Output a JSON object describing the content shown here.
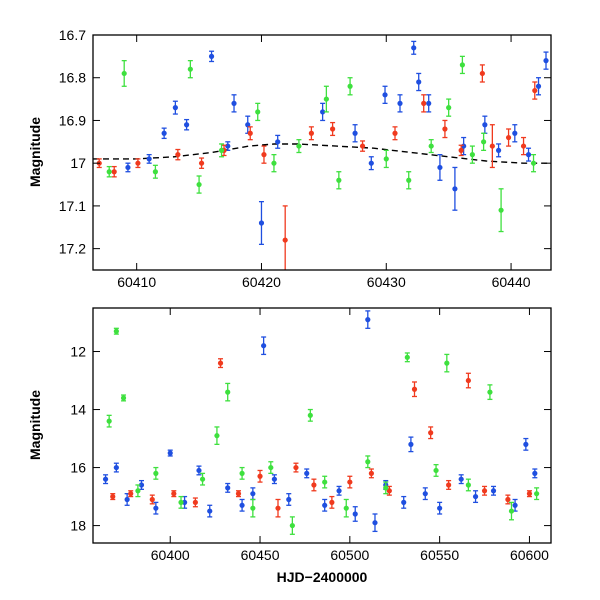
{
  "colors": {
    "blue": "#1f4fe0",
    "red": "#f03a1e",
    "green": "#3ee03e",
    "model": "#000000"
  },
  "chart_data": [
    {
      "type": "scatter",
      "title": "",
      "xlabel": "",
      "ylabel": "Magnitude",
      "xlim": [
        60406.5,
        60443.2
      ],
      "ylim": [
        17.25,
        16.7
      ],
      "y_inverted": true,
      "grid": false,
      "xticks": [
        60410,
        60420,
        60430,
        60440
      ],
      "xtick_labels": [
        "60410",
        "60420",
        "60430",
        "60440"
      ],
      "yticks": [
        16.7,
        16.8,
        16.9,
        17.0,
        17.1,
        17.2
      ],
      "ytick_labels": [
        "16.7",
        "16.8",
        "16.9",
        "17",
        "17.1",
        "17.2"
      ],
      "model_curve": {
        "style": "dashed",
        "color": "#000000",
        "x": [
          60406.5,
          60410,
          60413,
          60416,
          60419,
          60421,
          60423,
          60426,
          60429,
          60432,
          60435,
          60438,
          60441,
          60443.2
        ],
        "y": [
          16.99,
          16.99,
          16.985,
          16.975,
          16.96,
          16.955,
          16.955,
          16.96,
          16.965,
          16.975,
          16.985,
          16.995,
          17.0,
          17.0
        ]
      },
      "series": [
        {
          "color": "blue",
          "x": [
            60409.3,
            60411.0,
            60412.2,
            60413.1,
            60414.0,
            60416.0,
            60417.3,
            60417.8,
            60418.9,
            60420.0,
            60421.3,
            60424.9,
            60427.5,
            60428.8,
            60429.9,
            60431.1,
            60432.2,
            60432.6,
            60433.4,
            60434.3,
            60435.5,
            60436.2,
            60437.9,
            60439.0,
            60440.3,
            60441.4,
            60442.2,
            60442.8
          ],
          "y": [
            17.01,
            16.99,
            16.93,
            16.87,
            16.91,
            16.75,
            16.96,
            16.86,
            16.91,
            17.14,
            16.95,
            16.88,
            16.93,
            17.0,
            16.84,
            16.86,
            16.73,
            16.81,
            16.86,
            17.01,
            17.06,
            16.96,
            16.91,
            16.97,
            16.93,
            16.98,
            16.82,
            16.76
          ],
          "yerr": [
            0.01,
            0.01,
            0.012,
            0.015,
            0.012,
            0.012,
            0.01,
            0.02,
            0.02,
            0.05,
            0.015,
            0.02,
            0.02,
            0.015,
            0.02,
            0.02,
            0.015,
            0.02,
            0.02,
            0.03,
            0.05,
            0.02,
            0.02,
            0.015,
            0.02,
            0.015,
            0.02,
            0.02
          ]
        },
        {
          "color": "red",
          "x": [
            60407.0,
            60408.2,
            60410.1,
            60413.3,
            60415.2,
            60417.0,
            60419.1,
            60420.2,
            60421.9,
            60424.0,
            60425.7,
            60428.1,
            60430.7,
            60433.0,
            60434.7,
            60436.0,
            60437.7,
            60438.5,
            60439.8,
            60441.0,
            60441.9
          ],
          "y": [
            17.0,
            17.02,
            17.0,
            16.98,
            17.0,
            16.97,
            16.93,
            16.98,
            17.18,
            16.93,
            16.92,
            16.96,
            16.93,
            16.86,
            16.92,
            16.97,
            16.79,
            16.96,
            16.94,
            16.96,
            16.83
          ],
          "yerr": [
            0.01,
            0.012,
            0.01,
            0.012,
            0.012,
            0.012,
            0.015,
            0.02,
            0.08,
            0.015,
            0.015,
            0.012,
            0.015,
            0.02,
            0.02,
            0.012,
            0.02,
            0.05,
            0.02,
            0.02,
            0.02
          ]
        },
        {
          "color": "green",
          "x": [
            60407.8,
            60409.0,
            60411.5,
            60414.3,
            60415.0,
            60416.8,
            60419.7,
            60421.0,
            60423.0,
            60425.2,
            60426.2,
            60427.1,
            60430.0,
            60431.8,
            60433.6,
            60435.0,
            60436.1,
            60436.9,
            60437.8,
            60439.2,
            60441.8
          ],
          "y": [
            17.02,
            16.79,
            17.02,
            16.78,
            17.05,
            16.97,
            16.88,
            17.0,
            16.96,
            16.85,
            17.04,
            16.82,
            16.99,
            17.04,
            16.96,
            16.87,
            16.77,
            16.98,
            16.95,
            17.11,
            17.0
          ],
          "yerr": [
            0.012,
            0.03,
            0.015,
            0.02,
            0.02,
            0.015,
            0.02,
            0.02,
            0.015,
            0.03,
            0.02,
            0.02,
            0.02,
            0.02,
            0.015,
            0.02,
            0.02,
            0.02,
            0.02,
            0.05,
            0.02
          ]
        }
      ]
    },
    {
      "type": "scatter",
      "title": "",
      "xlabel": "HJD−2400000",
      "ylabel": "Magnitude",
      "xlim": [
        60357,
        60612
      ],
      "ylim": [
        18.6,
        10.5
      ],
      "y_inverted": true,
      "grid": false,
      "xticks": [
        60400,
        60450,
        60500,
        60550,
        60600
      ],
      "xtick_labels": [
        "60400",
        "60450",
        "60500",
        "60550",
        "60600"
      ],
      "yticks": [
        12,
        14,
        16,
        18
      ],
      "ytick_labels": [
        "12",
        "14",
        "16",
        "18"
      ],
      "series": [
        {
          "color": "blue",
          "x": [
            60364,
            60370,
            60376,
            60384,
            60392,
            60400,
            60408,
            60416,
            60422,
            60432,
            60440,
            60446,
            60452,
            60458,
            60466,
            60476,
            60486,
            60494,
            60503,
            60510,
            60514,
            60520,
            60530,
            60534,
            60542,
            60550,
            60562,
            60570,
            60580,
            60592,
            60598,
            60603
          ],
          "y": [
            16.4,
            16.0,
            17.1,
            16.6,
            17.4,
            15.5,
            17.2,
            16.1,
            17.5,
            16.7,
            17.3,
            16.9,
            11.8,
            16.4,
            17.1,
            16.2,
            17.3,
            16.8,
            17.6,
            10.9,
            17.9,
            16.6,
            17.2,
            15.2,
            16.9,
            17.4,
            16.4,
            17.0,
            16.8,
            17.3,
            15.2,
            16.2
          ],
          "yerr": [
            0.15,
            0.15,
            0.2,
            0.15,
            0.2,
            0.1,
            0.2,
            0.15,
            0.2,
            0.15,
            0.2,
            0.2,
            0.3,
            0.15,
            0.2,
            0.15,
            0.2,
            0.15,
            0.25,
            0.3,
            0.3,
            0.15,
            0.2,
            0.25,
            0.2,
            0.2,
            0.15,
            0.2,
            0.15,
            0.2,
            0.2,
            0.15
          ]
        },
        {
          "color": "red",
          "x": [
            60368,
            60378,
            60390,
            60402,
            60414,
            60428,
            60438,
            60450,
            60460,
            60470,
            60480,
            60490,
            60500,
            60512,
            60522,
            60536,
            60545,
            60555,
            60566,
            60575,
            60588,
            60600
          ],
          "y": [
            17.0,
            16.9,
            17.1,
            16.9,
            17.2,
            12.4,
            16.9,
            16.3,
            17.4,
            16.0,
            16.6,
            17.2,
            16.5,
            16.2,
            16.8,
            13.3,
            14.8,
            16.6,
            13.0,
            16.8,
            17.1,
            16.9
          ],
          "yerr": [
            0.1,
            0.1,
            0.15,
            0.1,
            0.15,
            0.15,
            0.1,
            0.2,
            0.3,
            0.15,
            0.2,
            0.2,
            0.2,
            0.15,
            0.15,
            0.25,
            0.2,
            0.15,
            0.25,
            0.15,
            0.15,
            0.1
          ]
        },
        {
          "color": "green",
          "x": [
            60366,
            60370,
            60374,
            60382,
            60392,
            60406,
            60418,
            60426,
            60432,
            60440,
            60446,
            60456,
            60468,
            60478,
            60486,
            60498,
            60510,
            60520,
            60532,
            60548,
            60554,
            60566,
            60578,
            60590,
            60604
          ],
          "y": [
            14.4,
            11.3,
            13.6,
            16.8,
            16.2,
            17.2,
            16.4,
            14.9,
            13.4,
            16.2,
            17.4,
            16.0,
            18.0,
            14.2,
            16.5,
            17.4,
            15.8,
            16.7,
            12.2,
            16.1,
            12.4,
            16.6,
            13.4,
            17.5,
            16.9
          ],
          "yerr": [
            0.2,
            0.1,
            0.1,
            0.2,
            0.2,
            0.2,
            0.2,
            0.3,
            0.3,
            0.2,
            0.3,
            0.2,
            0.3,
            0.2,
            0.2,
            0.3,
            0.2,
            0.2,
            0.15,
            0.2,
            0.3,
            0.2,
            0.25,
            0.3,
            0.2
          ]
        }
      ]
    }
  ]
}
